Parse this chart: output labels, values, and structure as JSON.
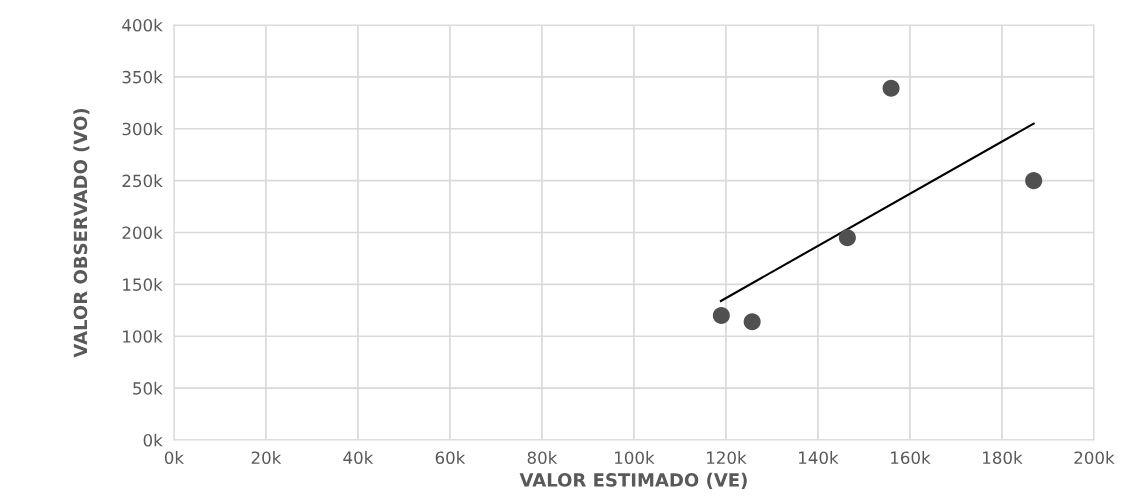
{
  "chart_data": {
    "type": "scatter",
    "xlabel": "VALOR ESTIMADO (VE)",
    "ylabel": "VALOR OBSERVADO (VO)",
    "series": [
      {
        "marker": "circle",
        "color": "#505050",
        "x": [
          119000,
          125700,
          146400,
          155900,
          186900
        ],
        "values": [
          120000,
          114000,
          195000,
          339000,
          250000
        ]
      },
      {
        "type": "line",
        "color": "#000000",
        "x": [
          118900,
          186900
        ],
        "values": [
          134000,
          305000
        ]
      }
    ],
    "xlim": [
      0,
      200000
    ],
    "ylim": [
      0,
      400000
    ],
    "xticks": [
      {
        "value": 0,
        "label": "0k"
      },
      {
        "value": 20000,
        "label": "20k"
      },
      {
        "value": 40000,
        "label": "40k"
      },
      {
        "value": 60000,
        "label": "60k"
      },
      {
        "value": 80000,
        "label": "80k"
      },
      {
        "value": 100000,
        "label": "100k"
      },
      {
        "value": 120000,
        "label": "120k"
      },
      {
        "value": 140000,
        "label": "140k"
      },
      {
        "value": 160000,
        "label": "160k"
      },
      {
        "value": 180000,
        "label": "180k"
      },
      {
        "value": 200000,
        "label": "200k"
      }
    ],
    "yticks": [
      {
        "value": 0,
        "label": "0k"
      },
      {
        "value": 50000,
        "label": "50k"
      },
      {
        "value": 100000,
        "label": "100k"
      },
      {
        "value": 150000,
        "label": "150k"
      },
      {
        "value": 200000,
        "label": "200k"
      },
      {
        "value": 250000,
        "label": "250k"
      },
      {
        "value": 300000,
        "label": "300k"
      },
      {
        "value": 350000,
        "label": "350k"
      },
      {
        "value": 400000,
        "label": "400k"
      }
    ],
    "grid": true
  }
}
